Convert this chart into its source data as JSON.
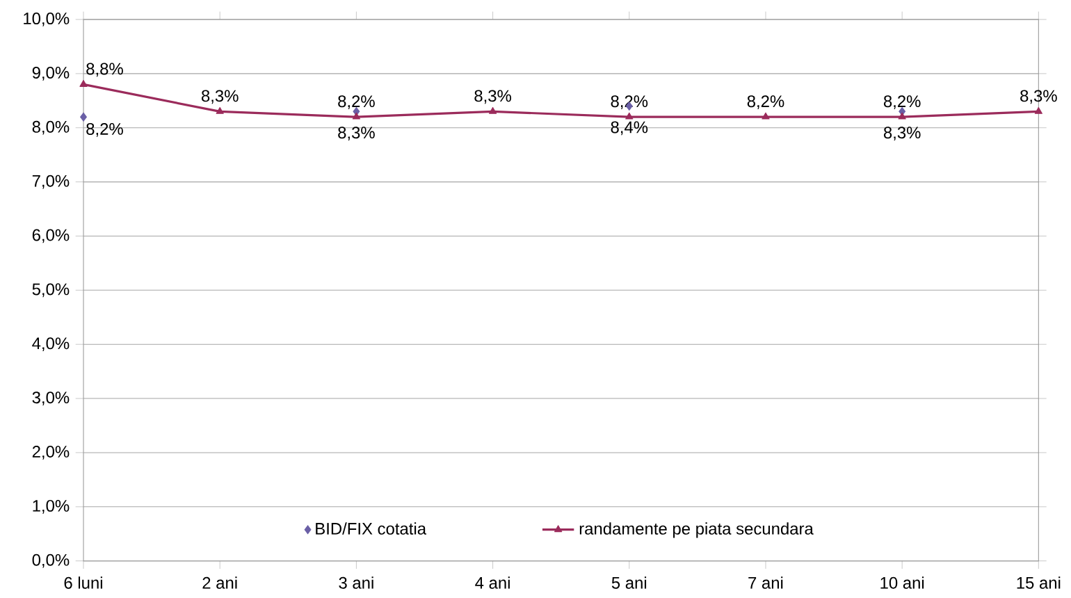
{
  "chart_data": {
    "type": "line",
    "categories": [
      "6 luni",
      "2 ani",
      "3 ani",
      "4 ani",
      "5 ani",
      "7 ani",
      "10 ani",
      "15 ani"
    ],
    "series": [
      {
        "name": "BID/FIX cotatia",
        "type": "scatter",
        "marker": "diamond",
        "color": "#6a5fa6",
        "values": [
          8.2,
          null,
          8.3,
          null,
          8.4,
          null,
          8.3,
          null
        ],
        "value_labels": [
          "8,2%",
          null,
          "8,3%",
          null,
          "8,4%",
          null,
          "8,3%",
          null
        ]
      },
      {
        "name": "randamente pe piata secundara",
        "marker": "triangle",
        "color": "#9b2b5b",
        "values": [
          8.8,
          8.3,
          8.2,
          8.3,
          8.2,
          8.2,
          8.2,
          8.3
        ],
        "value_labels": [
          "8,8%",
          "8,3%",
          "8,2%",
          "8,3%",
          "8,2%",
          "8,2%",
          "8,2%",
          "8,3%"
        ]
      }
    ],
    "ylim": [
      0,
      10
    ],
    "yticks": [
      {
        "value": 0,
        "label": "0,0%"
      },
      {
        "value": 1,
        "label": "1,0%"
      },
      {
        "value": 2,
        "label": "2,0%"
      },
      {
        "value": 3,
        "label": "3,0%"
      },
      {
        "value": 4,
        "label": "4,0%"
      },
      {
        "value": 5,
        "label": "5,0%"
      },
      {
        "value": 6,
        "label": "6,0%"
      },
      {
        "value": 7,
        "label": "7,0%"
      },
      {
        "value": 8,
        "label": "8,0%"
      },
      {
        "value": 9,
        "label": "9,0%"
      },
      {
        "value": 10,
        "label": "10,0%"
      }
    ],
    "grid": "y",
    "legend": "bottom"
  }
}
